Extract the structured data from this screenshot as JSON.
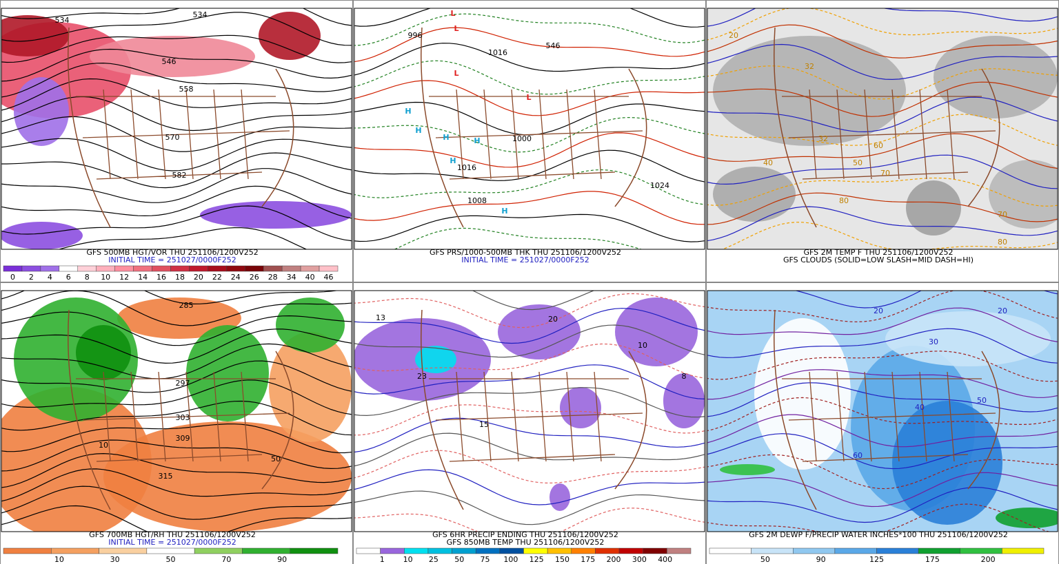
{
  "panels": [
    {
      "captions": [
        "GFS 500MB HGT/VOR THU 251106/1200V252",
        "INITIAL TIME = 251027/0000F252"
      ],
      "colorbar": {
        "labels": [
          "0",
          "2",
          "4",
          "6",
          "8",
          "10",
          "12",
          "14",
          "16",
          "18",
          "20",
          "22",
          "24",
          "26",
          "28",
          "34",
          "40",
          "46"
        ],
        "colors": [
          "#7a2fd8",
          "#8c4fe0",
          "#a070e8",
          "#ffffff",
          "#ffd0d8",
          "#ffb0bc",
          "#ff8fa0",
          "#f0707f",
          "#e05060",
          "#d03045",
          "#c0182c",
          "#a80c1c",
          "#900810",
          "#780408",
          "#a05050",
          "#c08080",
          "#e0a0a0",
          "#ffc0c8"
        ]
      },
      "contours": [
        "534",
        "546",
        "558",
        "570",
        "582",
        "534"
      ]
    },
    {
      "captions": [
        "GFS PRS/1000-500MB THK THU 251106/1200V252",
        "INITIAL TIME = 251027/0000F252"
      ],
      "contours": [
        "L",
        "L",
        "L",
        "L",
        "H",
        "H",
        "H",
        "H",
        "H",
        "H",
        "1016",
        "1008",
        "1000",
        "1024",
        "1016",
        "996",
        "546"
      ]
    },
    {
      "captions": [
        "GFS 2M TEMP F THU 251106/1200V252",
        "GFS CLOUDS (SOLID=LOW SLASH=MID DASH=HI)"
      ],
      "contours": [
        "20",
        "32",
        "32",
        "40",
        "50",
        "60",
        "70",
        "80",
        "70",
        "80"
      ]
    },
    {
      "captions": [
        "GFS 700MB HGT/RH THU 251106/1200V252",
        "INITIAL TIME = 251027/0000F252"
      ],
      "colorbar": {
        "labels": [
          "10",
          "30",
          "50",
          "70",
          "90"
        ],
        "colors": [
          "#f08040",
          "#f5a060",
          "#fad0a0",
          "#ffffff",
          "#90d060",
          "#30b030",
          "#109010"
        ]
      },
      "contours": [
        "297",
        "303",
        "309",
        "315",
        "285",
        "10",
        "50"
      ]
    },
    {
      "captions": [
        "GFS 6HR PRECIP ENDING THU 251106/1200V252",
        "GFS 850MB TEMP THU 251106/1200V252"
      ],
      "colorbar": {
        "labels": [
          "1",
          "10",
          "25",
          "50",
          "75",
          "100",
          "125",
          "150",
          "175",
          "200",
          "300",
          "400"
        ],
        "colors": [
          "#ffffff",
          "#9966dd",
          "#00e0f0",
          "#00c0e0",
          "#00a0d0",
          "#0070c0",
          "#0050a0",
          "#ffff00",
          "#ffc000",
          "#ff8000",
          "#e03000",
          "#c00000",
          "#800000",
          "#c08080"
        ]
      },
      "contours": [
        "13",
        "23",
        "20",
        "10",
        "8",
        "15"
      ]
    },
    {
      "captions": [
        "GFS 2M DEWP F/PRECIP WATER INCHES*100 THU 251106/1200V252"
      ],
      "colorbar": {
        "labels": [
          "50",
          "90",
          "125",
          "175",
          "200"
        ],
        "colors": [
          "#ffffff",
          "#c8e4f8",
          "#90c8f0",
          "#5aa8e8",
          "#2a80d8",
          "#10a030",
          "#30c040",
          "#f0f000"
        ]
      },
      "contours": [
        "20",
        "30",
        "40",
        "50",
        "60",
        "20"
      ]
    }
  ]
}
